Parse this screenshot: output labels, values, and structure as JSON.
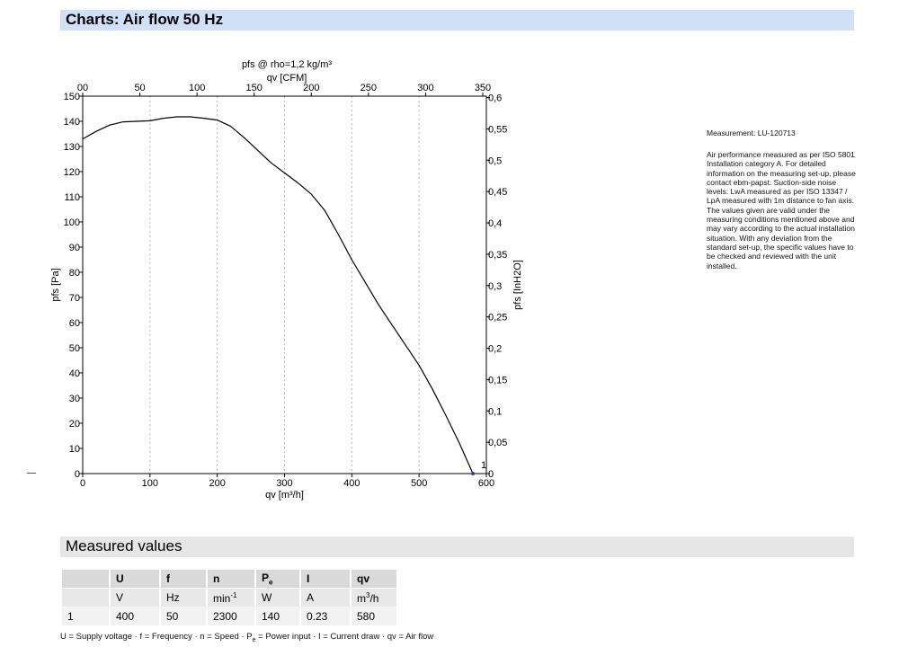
{
  "header": {
    "title": "Charts: Air flow 50 Hz"
  },
  "chart_data": {
    "type": "line",
    "title": "pfs @ rho=1,2 kg/m³",
    "xlabel": "qv [m³/h]",
    "x2label": "qv [CFM]",
    "ylabel": "pfs [Pa]",
    "y2label": "pfs [InH2O]",
    "xlim": [
      0,
      600
    ],
    "ylim": [
      0,
      150
    ],
    "x2lim": [
      0,
      353.15
    ],
    "y2lim": [
      0,
      0.6022
    ],
    "xticks": [
      "0",
      "100",
      "200",
      "300",
      "400",
      "500",
      "600"
    ],
    "x2ticks": [
      "00",
      "50",
      "100",
      "150",
      "200",
      "250",
      "300",
      "350"
    ],
    "yticks": [
      "0",
      "10",
      "20",
      "30",
      "40",
      "50",
      "60",
      "70",
      "80",
      "90",
      "100",
      "110",
      "120",
      "130",
      "140",
      "150"
    ],
    "y2ticks": [
      "0",
      "0,05",
      "0,1",
      "0,15",
      "0,2",
      "0,25",
      "0,3",
      "0,35",
      "0,4",
      "0,45",
      "0,5",
      "0,55",
      "0,6"
    ],
    "grid": "vertical-dashed",
    "series": [
      {
        "x": [
          0,
          20,
          40,
          60,
          80,
          100,
          120,
          140,
          160,
          180,
          200,
          220,
          240,
          260,
          280,
          300,
          320,
          340,
          360,
          380,
          400,
          420,
          440,
          460,
          480,
          500,
          520,
          540,
          560,
          580
        ],
        "y": [
          133,
          136,
          138.5,
          139.8,
          140,
          140.2,
          141.2,
          141.8,
          141.8,
          141.2,
          140.5,
          138,
          133.5,
          128.5,
          123.5,
          119.5,
          115.5,
          111,
          104.5,
          95,
          85,
          76,
          67,
          59,
          51,
          43,
          33.5,
          23,
          12,
          0
        ]
      }
    ],
    "annotations": [
      {
        "text": "1",
        "x": 580,
        "y": 0
      }
    ]
  },
  "side_note": {
    "measurement": "Measurement: LU-120713",
    "description": "Air performance measured as per ISO 5801 Installation category A. For detailed information on the measuring set-up, please contact ebm-papst. Suction-side noise levels: LwA measured as per ISO 13347 / LpA measured with 1m distance to fan axis. The values given are valid under the measuring conditions mentioned above and may vary according to the actual installation situation. With any deviation from the standard set-up, the specific values have to be checked and reviewed with the unit installed."
  },
  "measured": {
    "title": "Measured values",
    "headers": [
      "",
      "U",
      "f",
      "n",
      "P",
      "I",
      "qv"
    ],
    "pe_sub": "e",
    "units": [
      "",
      "V",
      "Hz",
      "min",
      "W",
      "A",
      "m"
    ],
    "n_sup": "-1",
    "qv_sup": "3",
    "qv_tail": "/h",
    "rows": [
      [
        "1",
        "400",
        "50",
        "2300",
        "140",
        "0.23",
        "580"
      ]
    ]
  },
  "legend": {
    "part1": "U = Supply voltage · f = Frequency · n = Speed · P",
    "sub": "e",
    "part2": " = Power input · I = Current draw · qv = Air flow"
  }
}
